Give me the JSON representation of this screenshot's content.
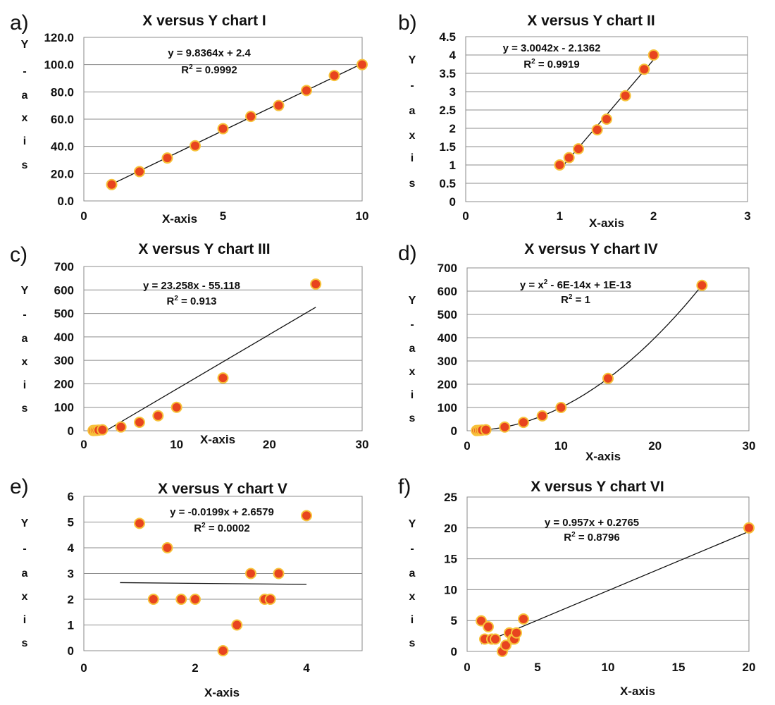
{
  "chart_data": [
    {
      "type": "scatter",
      "label": "a)",
      "title": "X versus Y chart I",
      "xlabel": "X-axis",
      "ylabel": [
        "Y",
        "-",
        "a",
        "x",
        "i",
        "s"
      ],
      "xlim": [
        0,
        10
      ],
      "ylim": [
        0,
        120
      ],
      "xticks": [
        0,
        5,
        10
      ],
      "yticks": [
        0,
        20,
        40,
        60,
        80,
        100,
        120
      ],
      "ytick_labels": [
        "0.0",
        "20.0",
        "40.0",
        "60.0",
        "80.0",
        "100.0",
        "120.0"
      ],
      "series": [
        {
          "name": "Y",
          "x": [
            1,
            2,
            3,
            4,
            5,
            6,
            7,
            8,
            9,
            10
          ],
          "y": [
            12,
            21.5,
            31.5,
            40.5,
            53,
            62,
            70,
            81,
            92,
            100
          ]
        }
      ],
      "trendline": {
        "kind": "linear",
        "slope": 9.8364,
        "intercept": 2.4,
        "x_range": [
          1,
          10
        ]
      },
      "equation": "y = 9.8364x + 2.4",
      "r2_prefix": "R",
      "r2_sup": "2",
      "r2_value": " = 0.9992"
    },
    {
      "type": "scatter",
      "label": "b)",
      "title": "X versus Y chart II",
      "xlabel": "X-axis",
      "ylabel": [
        "Y",
        "-",
        "a",
        "x",
        "i",
        "s"
      ],
      "xlim": [
        0,
        3
      ],
      "ylim": [
        0,
        4.5
      ],
      "xticks": [
        0,
        1,
        2,
        3
      ],
      "yticks": [
        0,
        0.5,
        1,
        1.5,
        2,
        2.5,
        3,
        3.5,
        4,
        4.5
      ],
      "ytick_labels": [
        "0",
        "0.5",
        "1",
        "1.5",
        "2",
        "2.5",
        "3",
        "3.5",
        "4",
        "4.5"
      ],
      "series": [
        {
          "name": "Y",
          "x": [
            1,
            1.1,
            1.2,
            1.4,
            1.5,
            1.7,
            1.9,
            2
          ],
          "y": [
            1,
            1.2,
            1.44,
            1.96,
            2.25,
            2.89,
            3.61,
            4
          ]
        }
      ],
      "trendline": {
        "kind": "linear",
        "slope": 3.0042,
        "intercept": -2.1362,
        "x_range": [
          1,
          2
        ]
      },
      "equation": "y = 3.0042x - 2.1362",
      "r2_prefix": "R",
      "r2_sup": "2",
      "r2_value": " = 0.9919"
    },
    {
      "type": "scatter",
      "label": "c)",
      "title": "X versus Y chart III",
      "xlabel": "X-axis",
      "ylabel": [
        "Y",
        "-",
        "a",
        "x",
        "i",
        "s"
      ],
      "xlim": [
        0,
        30
      ],
      "ylim": [
        0,
        700
      ],
      "xticks": [
        0,
        10,
        20,
        30
      ],
      "yticks": [
        0,
        100,
        200,
        300,
        400,
        500,
        600,
        700
      ],
      "ytick_labels": [
        "0",
        "100",
        "200",
        "300",
        "400",
        "500",
        "600",
        "700"
      ],
      "series": [
        {
          "name": "Y",
          "x": [
            1,
            1.2,
            1.4,
            1.6,
            2,
            4,
            6,
            8,
            10,
            15,
            25
          ],
          "y": [
            1,
            1.44,
            1.96,
            2.56,
            4,
            16,
            36,
            64,
            100,
            225,
            625
          ]
        }
      ],
      "trendline": {
        "kind": "linear",
        "slope": 23.258,
        "intercept": -55.118,
        "x_range": [
          2.37,
          25
        ]
      },
      "equation": "y = 23.258x - 55.118",
      "r2_prefix": "R",
      "r2_sup": "2",
      "r2_value": " = 0.913"
    },
    {
      "type": "scatter",
      "label": "d)",
      "title": "X versus Y chart IV",
      "xlabel": "X-axis",
      "ylabel": [
        "Y",
        "-",
        "a",
        "x",
        "i",
        "s"
      ],
      "xlim": [
        0,
        30
      ],
      "ylim": [
        0,
        700
      ],
      "xticks": [
        0,
        10,
        20,
        30
      ],
      "yticks": [
        0,
        100,
        200,
        300,
        400,
        500,
        600,
        700
      ],
      "ytick_labels": [
        "0",
        "100",
        "200",
        "300",
        "400",
        "500",
        "600",
        "700"
      ],
      "series": [
        {
          "name": "Y",
          "x": [
            1,
            1.2,
            1.4,
            1.6,
            2,
            4,
            6,
            8,
            10,
            15,
            25
          ],
          "y": [
            1,
            1.44,
            1.96,
            2.56,
            4,
            16,
            36,
            64,
            100,
            225,
            625
          ]
        }
      ],
      "trendline": {
        "kind": "poly2",
        "a": 1,
        "b": 0,
        "c": 0,
        "x_range": [
          1,
          25
        ]
      },
      "equation": "y = x",
      "equation_sup": "2",
      "equation_rest": " - 6E-14x + 1E-13",
      "r2_prefix": "R",
      "r2_sup": "2",
      "r2_value": " = 1"
    },
    {
      "type": "scatter",
      "label": "e)",
      "title": "X versus Y chart V",
      "xlabel": "X-axis",
      "ylabel": [
        "Y",
        "-",
        "a",
        "x",
        "i",
        "s"
      ],
      "xlim": [
        0,
        5
      ],
      "ylim": [
        0,
        6
      ],
      "xticks": [
        0,
        2,
        4
      ],
      "yticks": [
        0,
        1,
        2,
        3,
        4,
        5,
        6
      ],
      "ytick_labels": [
        "0",
        "1",
        "2",
        "3",
        "4",
        "5",
        "6"
      ],
      "series": [
        {
          "name": "Y",
          "x": [
            1,
            1.25,
            1.5,
            1.75,
            2,
            2.5,
            2.75,
            3,
            3.25,
            3.35,
            3.5,
            4
          ],
          "y": [
            4.95,
            2,
            4,
            2,
            2,
            0,
            1,
            3,
            2,
            2,
            3,
            5.25
          ]
        }
      ],
      "trendline": {
        "kind": "linear",
        "slope": -0.0199,
        "intercept": 2.6579,
        "x_range": [
          0.65,
          4
        ]
      },
      "equation": "y = -0.0199x + 2.6579",
      "r2_prefix": "R",
      "r2_sup": "2",
      "r2_value": " = 0.0002"
    },
    {
      "type": "scatter",
      "label": "f)",
      "title": "X versus Y chart VI",
      "xlabel": "X-axis",
      "ylabel": [
        "Y",
        "-",
        "a",
        "x",
        "i",
        "s"
      ],
      "xlim": [
        0,
        20
      ],
      "ylim": [
        0,
        25
      ],
      "xticks": [
        0,
        5,
        10,
        15,
        20
      ],
      "yticks": [
        0,
        5,
        10,
        15,
        20,
        25
      ],
      "ytick_labels": [
        "0",
        "5",
        "10",
        "15",
        "20",
        "25"
      ],
      "series": [
        {
          "name": "Y",
          "x": [
            1,
            1.25,
            1.5,
            1.75,
            2,
            2.5,
            2.75,
            3,
            3.25,
            3.35,
            3.5,
            4,
            20
          ],
          "y": [
            4.95,
            2,
            4,
            2,
            2,
            0,
            1,
            3,
            2,
            2,
            3,
            5.25,
            20
          ]
        }
      ],
      "trendline": {
        "kind": "linear",
        "slope": 0.957,
        "intercept": 0.2765,
        "x_range": [
          1,
          20
        ]
      },
      "equation": "y = 0.957x + 0.2765",
      "r2_prefix": "R",
      "r2_sup": "2",
      "r2_value": " = 0.8796"
    }
  ]
}
